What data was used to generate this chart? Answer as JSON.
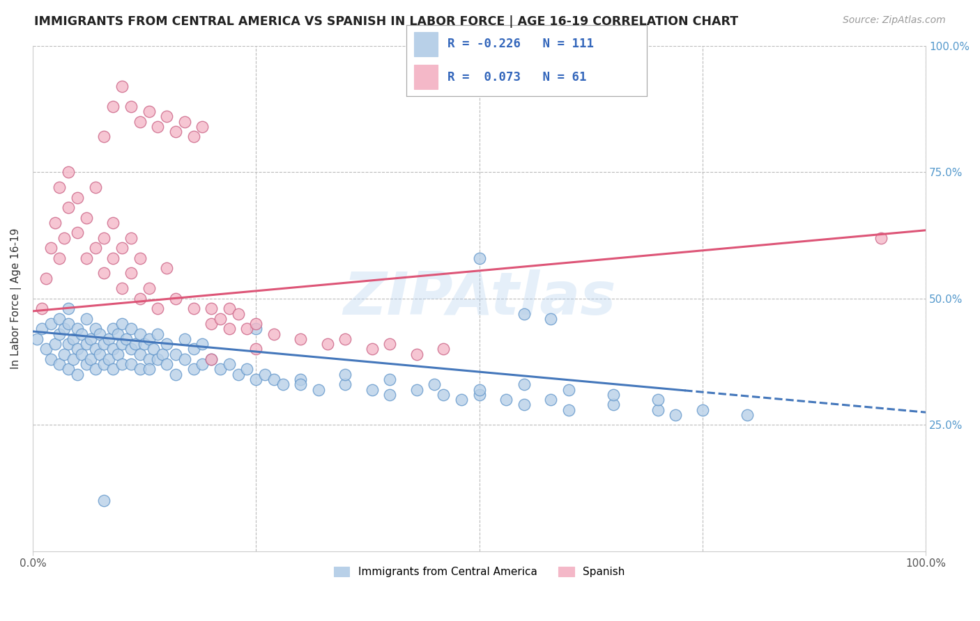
{
  "title": "IMMIGRANTS FROM CENTRAL AMERICA VS SPANISH IN LABOR FORCE | AGE 16-19 CORRELATION CHART",
  "source": "Source: ZipAtlas.com",
  "ylabel": "In Labor Force | Age 16-19",
  "legend_label_1": "Immigrants from Central America",
  "legend_label_2": "Spanish",
  "R1": -0.226,
  "N1": 111,
  "R2": 0.073,
  "N2": 61,
  "color_blue_fill": "#b8d0e8",
  "color_blue_edge": "#6699cc",
  "color_pink_fill": "#f4b8c8",
  "color_pink_edge": "#cc6688",
  "color_blue_line": "#4477bb",
  "color_pink_line": "#dd5577",
  "xlim": [
    0.0,
    1.0
  ],
  "ylim": [
    0.0,
    1.0
  ],
  "watermark": "ZIPAtlas",
  "background_color": "#ffffff",
  "grid_color": "#bbbbbb",
  "blue_x": [
    0.005,
    0.01,
    0.015,
    0.02,
    0.02,
    0.025,
    0.03,
    0.03,
    0.03,
    0.035,
    0.035,
    0.04,
    0.04,
    0.04,
    0.04,
    0.045,
    0.045,
    0.05,
    0.05,
    0.05,
    0.055,
    0.055,
    0.06,
    0.06,
    0.06,
    0.065,
    0.065,
    0.07,
    0.07,
    0.07,
    0.075,
    0.075,
    0.08,
    0.08,
    0.085,
    0.085,
    0.09,
    0.09,
    0.09,
    0.095,
    0.095,
    0.1,
    0.1,
    0.1,
    0.105,
    0.11,
    0.11,
    0.11,
    0.115,
    0.12,
    0.12,
    0.12,
    0.125,
    0.13,
    0.13,
    0.135,
    0.14,
    0.14,
    0.145,
    0.15,
    0.15,
    0.16,
    0.16,
    0.17,
    0.17,
    0.18,
    0.18,
    0.19,
    0.19,
    0.2,
    0.21,
    0.22,
    0.23,
    0.24,
    0.25,
    0.26,
    0.27,
    0.28,
    0.3,
    0.32,
    0.35,
    0.38,
    0.4,
    0.43,
    0.46,
    0.48,
    0.5,
    0.53,
    0.55,
    0.58,
    0.6,
    0.65,
    0.7,
    0.72,
    0.75,
    0.5,
    0.55,
    0.58,
    0.13,
    0.08,
    0.25,
    0.3,
    0.35,
    0.4,
    0.45,
    0.5,
    0.55,
    0.6,
    0.65,
    0.7,
    0.8
  ],
  "blue_y": [
    0.42,
    0.44,
    0.4,
    0.38,
    0.45,
    0.41,
    0.43,
    0.37,
    0.46,
    0.39,
    0.44,
    0.41,
    0.36,
    0.45,
    0.48,
    0.42,
    0.38,
    0.4,
    0.44,
    0.35,
    0.43,
    0.39,
    0.41,
    0.37,
    0.46,
    0.42,
    0.38,
    0.4,
    0.44,
    0.36,
    0.43,
    0.39,
    0.41,
    0.37,
    0.42,
    0.38,
    0.4,
    0.44,
    0.36,
    0.43,
    0.39,
    0.41,
    0.37,
    0.45,
    0.42,
    0.4,
    0.37,
    0.44,
    0.41,
    0.39,
    0.43,
    0.36,
    0.41,
    0.38,
    0.42,
    0.4,
    0.38,
    0.43,
    0.39,
    0.37,
    0.41,
    0.39,
    0.35,
    0.38,
    0.42,
    0.36,
    0.4,
    0.37,
    0.41,
    0.38,
    0.36,
    0.37,
    0.35,
    0.36,
    0.34,
    0.35,
    0.34,
    0.33,
    0.34,
    0.32,
    0.33,
    0.32,
    0.31,
    0.32,
    0.31,
    0.3,
    0.31,
    0.3,
    0.29,
    0.3,
    0.28,
    0.29,
    0.28,
    0.27,
    0.28,
    0.58,
    0.47,
    0.46,
    0.36,
    0.1,
    0.44,
    0.33,
    0.35,
    0.34,
    0.33,
    0.32,
    0.33,
    0.32,
    0.31,
    0.3,
    0.27
  ],
  "pink_x": [
    0.01,
    0.015,
    0.02,
    0.025,
    0.03,
    0.03,
    0.035,
    0.04,
    0.04,
    0.05,
    0.05,
    0.06,
    0.06,
    0.07,
    0.07,
    0.08,
    0.08,
    0.09,
    0.09,
    0.1,
    0.1,
    0.11,
    0.11,
    0.12,
    0.12,
    0.13,
    0.14,
    0.15,
    0.16,
    0.18,
    0.2,
    0.22,
    0.24,
    0.08,
    0.09,
    0.1,
    0.11,
    0.12,
    0.13,
    0.14,
    0.15,
    0.16,
    0.17,
    0.18,
    0.19,
    0.2,
    0.21,
    0.22,
    0.23,
    0.25,
    0.27,
    0.3,
    0.33,
    0.35,
    0.38,
    0.4,
    0.43,
    0.46,
    0.95,
    0.2,
    0.25
  ],
  "pink_y": [
    0.48,
    0.54,
    0.6,
    0.65,
    0.58,
    0.72,
    0.62,
    0.68,
    0.75,
    0.63,
    0.7,
    0.58,
    0.66,
    0.6,
    0.72,
    0.55,
    0.62,
    0.58,
    0.65,
    0.52,
    0.6,
    0.55,
    0.62,
    0.5,
    0.58,
    0.52,
    0.48,
    0.56,
    0.5,
    0.48,
    0.45,
    0.48,
    0.44,
    0.82,
    0.88,
    0.92,
    0.88,
    0.85,
    0.87,
    0.84,
    0.86,
    0.83,
    0.85,
    0.82,
    0.84,
    0.48,
    0.46,
    0.44,
    0.47,
    0.45,
    0.43,
    0.42,
    0.41,
    0.42,
    0.4,
    0.41,
    0.39,
    0.4,
    0.62,
    0.38,
    0.4
  ],
  "blue_line_start_x": 0.0,
  "blue_line_end_solid_x": 0.73,
  "blue_line_end_dash_x": 1.0,
  "blue_line_start_y": 0.435,
  "blue_line_end_y": 0.275,
  "pink_line_start_x": 0.0,
  "pink_line_end_x": 1.0,
  "pink_line_start_y": 0.475,
  "pink_line_end_y": 0.635
}
